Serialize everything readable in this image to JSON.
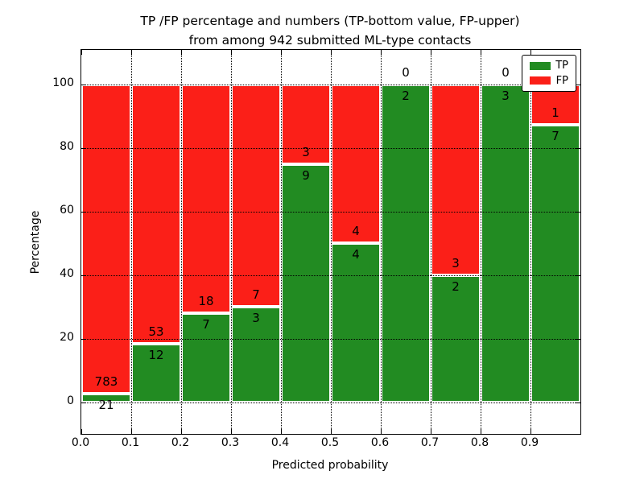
{
  "chart_data": {
    "type": "bar",
    "stacked": true,
    "title_lines": [
      "TP /FP percentage and numbers (TP-bottom value, FP-upper)",
      "from among 942 submitted ML-type contacts"
    ],
    "xlabel": "Predicted probability",
    "ylabel": "Percentage",
    "total_contacts": 942,
    "bin_edges": [
      0.0,
      0.1,
      0.2,
      0.3,
      0.4,
      0.5,
      0.6,
      0.7,
      0.8,
      0.9,
      1.0
    ],
    "xtick_labels": [
      "0.0",
      "0.1",
      "0.2",
      "0.3",
      "0.4",
      "0.5",
      "0.6",
      "0.7",
      "0.8",
      "0.9"
    ],
    "yticks": [
      0,
      20,
      40,
      60,
      80,
      100
    ],
    "xlim": [
      0,
      1
    ],
    "ylim": [
      -10,
      111
    ],
    "grid": {
      "on": true,
      "style": "dotted",
      "color": "#000000"
    },
    "series": [
      {
        "name": "TP",
        "color": "#228B22",
        "counts": [
          21,
          12,
          7,
          3,
          9,
          4,
          2,
          2,
          3,
          7
        ]
      },
      {
        "name": "FP",
        "color": "#FB1F18",
        "counts": [
          783,
          53,
          18,
          7,
          3,
          4,
          0,
          3,
          0,
          1
        ]
      }
    ],
    "tp_percent_per_bin": [
      2.61,
      18.46,
      28.0,
      30.0,
      75.0,
      50.0,
      100.0,
      40.0,
      100.0,
      87.5
    ],
    "legend": {
      "position": "upper right",
      "entries": [
        {
          "label": "TP",
          "color": "#228B22"
        },
        {
          "label": "FP",
          "color": "#FB1F18"
        }
      ]
    }
  }
}
